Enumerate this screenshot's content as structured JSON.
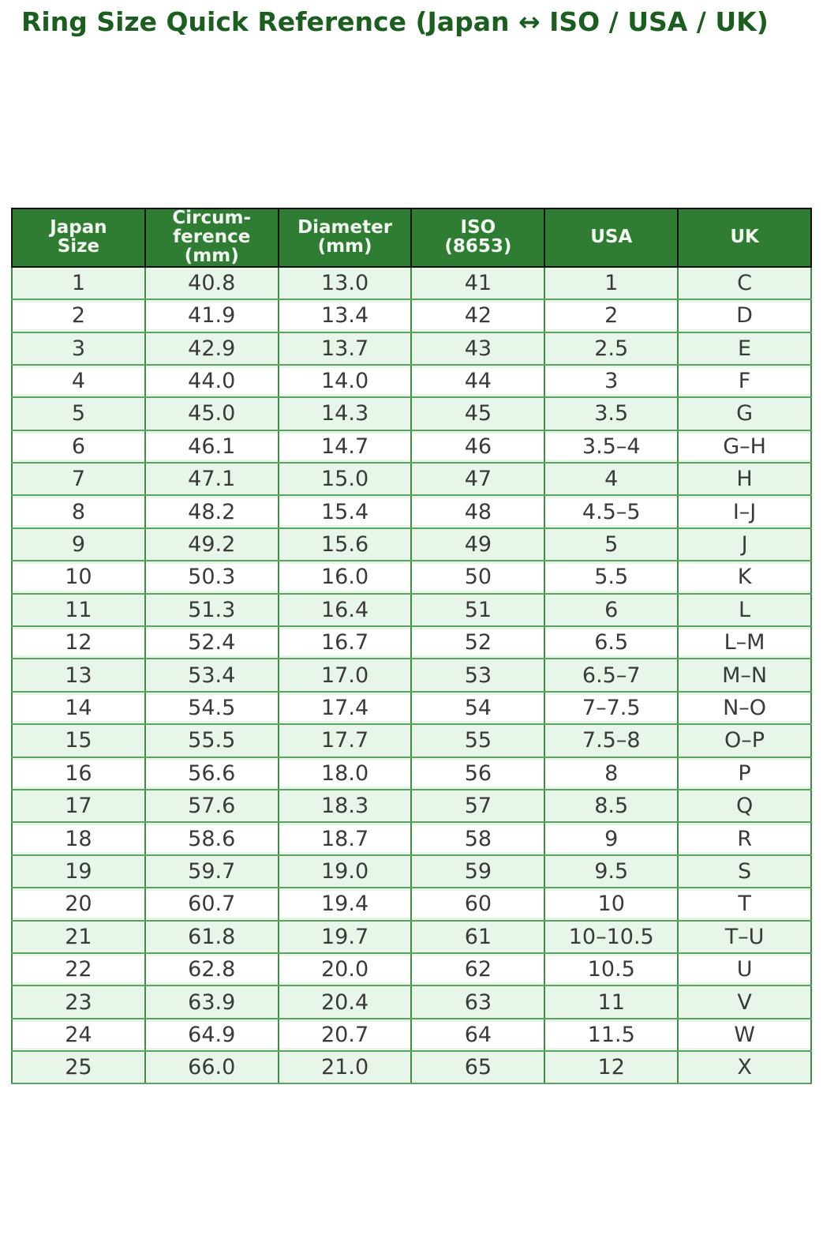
{
  "page": {
    "title": "Ring Size Quick Reference (Japan ↔ ISO / USA / UK)"
  },
  "colors": {
    "title_green": "#1b5e20",
    "header_bg": "#2e7d32",
    "header_text": "#f2f7f2",
    "header_border": "#121212",
    "row_alt_bg": "#e8f5e9",
    "row_bg": "#ffffff",
    "grid_dark": "#3f8c46",
    "grid_light": "#5ca361",
    "body_text": "#3a3a3a"
  },
  "table": {
    "column_slugs": [
      "japan-size",
      "circumference-mm",
      "diameter-mm",
      "iso-8653",
      "usa",
      "uk"
    ],
    "headers": [
      "Japan\nSize",
      "Circum-\nference\n(mm)",
      "Diameter\n(mm)",
      "ISO\n(8653)",
      "USA",
      "UK"
    ],
    "rows": [
      [
        "1",
        "40.8",
        "13.0",
        "41",
        "1",
        "C"
      ],
      [
        "2",
        "41.9",
        "13.4",
        "42",
        "2",
        "D"
      ],
      [
        "3",
        "42.9",
        "13.7",
        "43",
        "2.5",
        "E"
      ],
      [
        "4",
        "44.0",
        "14.0",
        "44",
        "3",
        "F"
      ],
      [
        "5",
        "45.0",
        "14.3",
        "45",
        "3.5",
        "G"
      ],
      [
        "6",
        "46.1",
        "14.7",
        "46",
        "3.5–4",
        "G–H"
      ],
      [
        "7",
        "47.1",
        "15.0",
        "47",
        "4",
        "H"
      ],
      [
        "8",
        "48.2",
        "15.4",
        "48",
        "4.5–5",
        "I–J"
      ],
      [
        "9",
        "49.2",
        "15.6",
        "49",
        "5",
        "J"
      ],
      [
        "10",
        "50.3",
        "16.0",
        "50",
        "5.5",
        "K"
      ],
      [
        "11",
        "51.3",
        "16.4",
        "51",
        "6",
        "L"
      ],
      [
        "12",
        "52.4",
        "16.7",
        "52",
        "6.5",
        "L–M"
      ],
      [
        "13",
        "53.4",
        "17.0",
        "53",
        "6.5–7",
        "M–N"
      ],
      [
        "14",
        "54.5",
        "17.4",
        "54",
        "7–7.5",
        "N–O"
      ],
      [
        "15",
        "55.5",
        "17.7",
        "55",
        "7.5–8",
        "O–P"
      ],
      [
        "16",
        "56.6",
        "18.0",
        "56",
        "8",
        "P"
      ],
      [
        "17",
        "57.6",
        "18.3",
        "57",
        "8.5",
        "Q"
      ],
      [
        "18",
        "58.6",
        "18.7",
        "58",
        "9",
        "R"
      ],
      [
        "19",
        "59.7",
        "19.0",
        "59",
        "9.5",
        "S"
      ],
      [
        "20",
        "60.7",
        "19.4",
        "60",
        "10",
        "T"
      ],
      [
        "21",
        "61.8",
        "19.7",
        "61",
        "10–10.5",
        "T–U"
      ],
      [
        "22",
        "62.8",
        "20.0",
        "62",
        "10.5",
        "U"
      ],
      [
        "23",
        "63.9",
        "20.4",
        "63",
        "11",
        "V"
      ],
      [
        "24",
        "64.9",
        "20.7",
        "64",
        "11.5",
        "W"
      ],
      [
        "25",
        "66.0",
        "21.0",
        "65",
        "12",
        "X"
      ]
    ]
  }
}
